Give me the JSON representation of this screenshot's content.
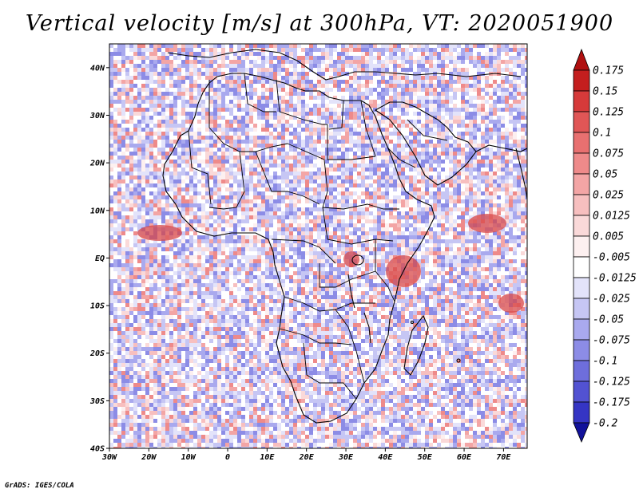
{
  "title": "Vertical velocity [m/s] at 300hPa, VT: 2020051900",
  "credit": "GrADS: IGES/COLA",
  "map": {
    "lon_range": [
      -30,
      76
    ],
    "lat_range": [
      -40,
      45
    ],
    "lat_ticks": [
      {
        "value": 40,
        "label": "40N"
      },
      {
        "value": 30,
        "label": "30N"
      },
      {
        "value": 20,
        "label": "20N"
      },
      {
        "value": 10,
        "label": "10N"
      },
      {
        "value": 0,
        "label": "EQ"
      },
      {
        "value": -10,
        "label": "10S"
      },
      {
        "value": -20,
        "label": "20S"
      },
      {
        "value": -30,
        "label": "30S"
      },
      {
        "value": -40,
        "label": "40S"
      }
    ],
    "lon_ticks": [
      {
        "value": -30,
        "label": "30W"
      },
      {
        "value": -20,
        "label": "20W"
      },
      {
        "value": -10,
        "label": "10W"
      },
      {
        "value": 0,
        "label": "0"
      },
      {
        "value": 10,
        "label": "10E"
      },
      {
        "value": 20,
        "label": "20E"
      },
      {
        "value": 30,
        "label": "30E"
      },
      {
        "value": 40,
        "label": "40E"
      },
      {
        "value": 50,
        "label": "50E"
      },
      {
        "value": 60,
        "label": "60E"
      },
      {
        "value": 70,
        "label": "70E"
      }
    ]
  },
  "colorbar": {
    "levels": [
      {
        "label": "0.175",
        "color": "#c41e1e"
      },
      {
        "label": "0.15",
        "color": "#d63a3a"
      },
      {
        "label": "0.125",
        "color": "#e05656"
      },
      {
        "label": "0.1",
        "color": "#e87070"
      },
      {
        "label": "0.075",
        "color": "#ee8a8a"
      },
      {
        "label": "0.05",
        "color": "#f3a5a5"
      },
      {
        "label": "0.025",
        "color": "#f7bfbf"
      },
      {
        "label": "0.0125",
        "color": "#fad9d9"
      },
      {
        "label": "0.005",
        "color": "#fdf0f0"
      },
      {
        "label": "-0.005",
        "color": "#ffffff"
      },
      {
        "label": "-0.0125",
        "color": "#e3e3fa"
      },
      {
        "label": "-0.025",
        "color": "#c6c6f4"
      },
      {
        "label": "-0.05",
        "color": "#a9a9ee"
      },
      {
        "label": "-0.075",
        "color": "#8c8ce6"
      },
      {
        "label": "-0.1",
        "color": "#6e6edc"
      },
      {
        "label": "-0.125",
        "color": "#5252d2"
      },
      {
        "label": "-0.175",
        "color": "#3535c4"
      },
      {
        "label": "-0.2",
        "color": "#2020b4"
      }
    ],
    "top_arrow_color": "#b01010",
    "bottom_arrow_color": "#12129a"
  }
}
